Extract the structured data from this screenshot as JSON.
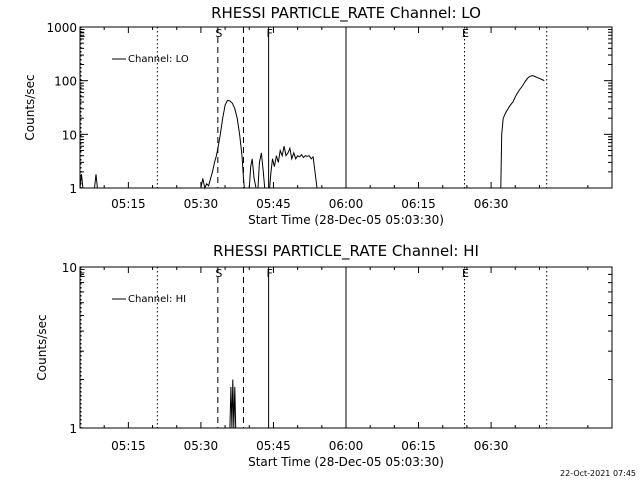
{
  "chart_data": [
    {
      "type": "line",
      "title": "RHESSI PARTICLE_RATE Channel: LO",
      "xlabel": "Start Time (28-Dec-05 05:03:30)",
      "ylabel": "Counts/sec",
      "y_scale": "log",
      "ylim": [
        1,
        1000
      ],
      "xlim_minutes": [
        5.0,
        115.0
      ],
      "x_tick_labels": [
        "05:15",
        "05:30",
        "05:45",
        "06:00",
        "06:15",
        "06:30"
      ],
      "x_tick_minutes": [
        15,
        30,
        45,
        60,
        75,
        90
      ],
      "y_tick_labels": [
        "1",
        "10",
        "100",
        "1000"
      ],
      "y_tick_values": [
        1,
        10,
        100,
        1000
      ],
      "legend": {
        "label": "Channel: LO",
        "position": "top-left"
      },
      "markers": [
        {
          "label": "E",
          "style": "dotted",
          "minute": 5.2
        },
        {
          "label": "",
          "style": "dotted",
          "minute": 21.0
        },
        {
          "label": "S",
          "style": "dashed",
          "minute": 33.5
        },
        {
          "label": "",
          "style": "dashed",
          "minute": 38.8
        },
        {
          "label": "F",
          "style": "solid",
          "minute": 44.0
        },
        {
          "label": "",
          "style": "solid",
          "minute": 60.0
        },
        {
          "label": "E",
          "style": "dotted",
          "minute": 84.5
        },
        {
          "label": "",
          "style": "dotted",
          "minute": 101.5
        }
      ],
      "series": [
        {
          "segments": [
            [
              [
                5.0,
                1.0
              ],
              [
                5.3,
                1.8
              ],
              [
                5.6,
                1.0
              ]
            ],
            [
              [
                8.0,
                1.0
              ],
              [
                8.3,
                1.8
              ],
              [
                8.6,
                1.0
              ]
            ],
            [
              [
                30.0,
                1.0
              ],
              [
                30.4,
                1.5
              ],
              [
                30.8,
                1.0
              ],
              [
                31.2,
                1.2
              ],
              [
                31.6,
                1.1
              ],
              [
                32.0,
                1.5
              ],
              [
                32.4,
                2.0
              ],
              [
                32.8,
                3.0
              ],
              [
                33.2,
                4.0
              ],
              [
                33.6,
                6.0
              ],
              [
                34.0,
                10.0
              ],
              [
                34.5,
                20.0
              ],
              [
                35.0,
                35.0
              ],
              [
                35.5,
                43.0
              ],
              [
                36.0,
                42.0
              ],
              [
                36.5,
                38.0
              ],
              [
                37.0,
                30.0
              ],
              [
                37.5,
                20.0
              ],
              [
                38.0,
                10.0
              ],
              [
                38.5,
                4.0
              ],
              [
                38.8,
                1.5
              ],
              [
                39.0,
                1.0
              ]
            ],
            [
              [
                40.0,
                1.0
              ],
              [
                40.3,
                2.5
              ],
              [
                40.6,
                3.5
              ],
              [
                41.0,
                1.5
              ],
              [
                41.4,
                1.0
              ]
            ],
            [
              [
                41.8,
                1.0
              ],
              [
                42.1,
                3.0
              ],
              [
                42.5,
                4.5
              ],
              [
                42.9,
                2.0
              ],
              [
                43.2,
                1.0
              ]
            ],
            [
              [
                44.2,
                1.0
              ],
              [
                44.5,
                2.0
              ],
              [
                44.8,
                3.5
              ],
              [
                45.2,
                2.5
              ],
              [
                45.6,
                4.0
              ],
              [
                46.0,
                3.0
              ],
              [
                46.4,
                5.0
              ],
              [
                46.8,
                4.0
              ],
              [
                47.2,
                6.0
              ],
              [
                47.6,
                4.0
              ],
              [
                48.0,
                4.5
              ],
              [
                48.4,
                5.5
              ],
              [
                48.8,
                3.5
              ],
              [
                49.2,
                4.5
              ],
              [
                49.6,
                3.5
              ],
              [
                50.0,
                4.0
              ],
              [
                50.4,
                3.8
              ],
              [
                50.8,
                4.2
              ],
              [
                51.2,
                3.7
              ],
              [
                51.6,
                4.0
              ],
              [
                52.0,
                3.9
              ],
              [
                52.4,
                4.0
              ],
              [
                52.8,
                3.5
              ],
              [
                53.2,
                3.8
              ],
              [
                53.6,
                2.0
              ],
              [
                54.0,
                1.0
              ]
            ],
            [
              [
                92.0,
                1.0
              ],
              [
                92.2,
                10.0
              ],
              [
                92.5,
                20.0
              ],
              [
                93.0,
                25.0
              ],
              [
                93.5,
                30.0
              ],
              [
                94.0,
                35.0
              ],
              [
                94.5,
                40.0
              ],
              [
                95.0,
                50.0
              ],
              [
                95.5,
                60.0
              ],
              [
                96.0,
                70.0
              ],
              [
                96.5,
                80.0
              ],
              [
                97.0,
                95.0
              ],
              [
                97.5,
                110.0
              ],
              [
                98.0,
                120.0
              ],
              [
                98.5,
                125.0
              ],
              [
                99.0,
                120.0
              ],
              [
                99.5,
                115.0
              ],
              [
                100.0,
                110.0
              ],
              [
                100.5,
                105.0
              ],
              [
                101.0,
                100.0
              ]
            ]
          ]
        }
      ]
    },
    {
      "type": "line",
      "title": "RHESSI PARTICLE_RATE Channel: HI",
      "xlabel": "Start Time (28-Dec-05 05:03:30)",
      "ylabel": "Counts/sec",
      "y_scale": "log",
      "ylim": [
        1,
        10
      ],
      "xlim_minutes": [
        5.0,
        115.0
      ],
      "x_tick_labels": [
        "05:15",
        "05:30",
        "05:45",
        "06:00",
        "06:15",
        "06:30"
      ],
      "x_tick_minutes": [
        15,
        30,
        45,
        60,
        75,
        90
      ],
      "y_tick_labels": [
        "1",
        "10"
      ],
      "y_tick_values": [
        1,
        10
      ],
      "legend": {
        "label": "Channel: HI",
        "position": "top-left"
      },
      "markers": [
        {
          "label": "E",
          "style": "dotted",
          "minute": 5.2
        },
        {
          "label": "",
          "style": "dotted",
          "minute": 21.0
        },
        {
          "label": "S",
          "style": "dashed",
          "minute": 33.5
        },
        {
          "label": "",
          "style": "dashed",
          "minute": 38.8
        },
        {
          "label": "F",
          "style": "solid",
          "minute": 44.0
        },
        {
          "label": "",
          "style": "solid",
          "minute": 60.0
        },
        {
          "label": "E",
          "style": "dotted",
          "minute": 84.5
        },
        {
          "label": "",
          "style": "dotted",
          "minute": 101.5
        }
      ],
      "series": [
        {
          "segments": [
            [
              [
                36.0,
                1.0
              ],
              [
                36.2,
                1.8
              ],
              [
                36.4,
                1.0
              ],
              [
                36.6,
                2.0
              ],
              [
                36.8,
                1.0
              ],
              [
                37.0,
                1.8
              ],
              [
                37.2,
                1.0
              ]
            ]
          ]
        }
      ]
    }
  ],
  "timestamp": "22-Oct-2021 07:45"
}
